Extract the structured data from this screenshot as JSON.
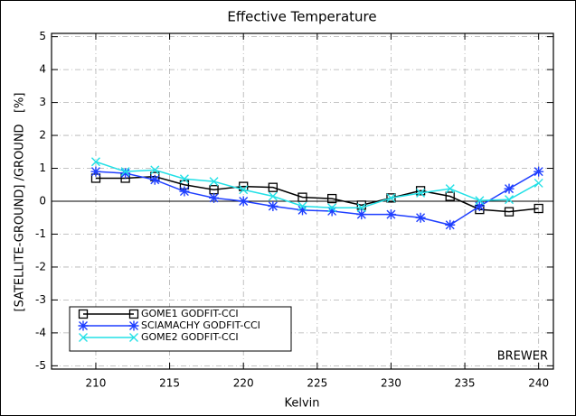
{
  "chart_data": {
    "type": "line",
    "title": "Effective Temperature",
    "x_label": "Kelvin",
    "y_label": "[SATELLITE-GROUND] /GROUND   [%]",
    "annotation": "BREWER",
    "x": [
      210,
      212,
      214,
      216,
      218,
      220,
      222,
      224,
      226,
      228,
      230,
      232,
      234,
      236,
      238,
      240
    ],
    "series": [
      {
        "name": "GOME1 GODFIT-CCI",
        "color": "#000000",
        "marker": "square",
        "values": [
          0.7,
          0.7,
          0.75,
          0.5,
          0.35,
          0.45,
          0.42,
          0.12,
          0.08,
          -0.12,
          0.1,
          0.32,
          0.15,
          -0.25,
          -0.32,
          -0.22
        ]
      },
      {
        "name": "SCIAMACHY GODFIT-CCI",
        "color": "#1f3fff",
        "marker": "asterisk",
        "values": [
          0.9,
          0.85,
          0.65,
          0.3,
          0.1,
          0.0,
          -0.15,
          -0.27,
          -0.3,
          -0.4,
          -0.4,
          -0.5,
          -0.72,
          -0.15,
          0.38,
          0.9
        ]
      },
      {
        "name": "GOME2 GODFIT-CCI",
        "color": "#22e0e6",
        "marker": "x",
        "values": [
          1.2,
          0.9,
          0.95,
          0.68,
          0.6,
          0.35,
          0.15,
          -0.15,
          -0.2,
          -0.2,
          0.1,
          0.25,
          0.38,
          0.02,
          0.05,
          0.55
        ]
      }
    ],
    "xlim": [
      207,
      241
    ],
    "xticks": [
      210,
      215,
      220,
      225,
      230,
      235,
      240
    ],
    "ylim": [
      -5.1,
      5.1
    ],
    "yticks": [
      -5,
      -4,
      -3,
      -2,
      -1,
      0,
      1,
      2,
      3,
      4,
      5
    ],
    "grid": true,
    "legend": "lower left"
  }
}
